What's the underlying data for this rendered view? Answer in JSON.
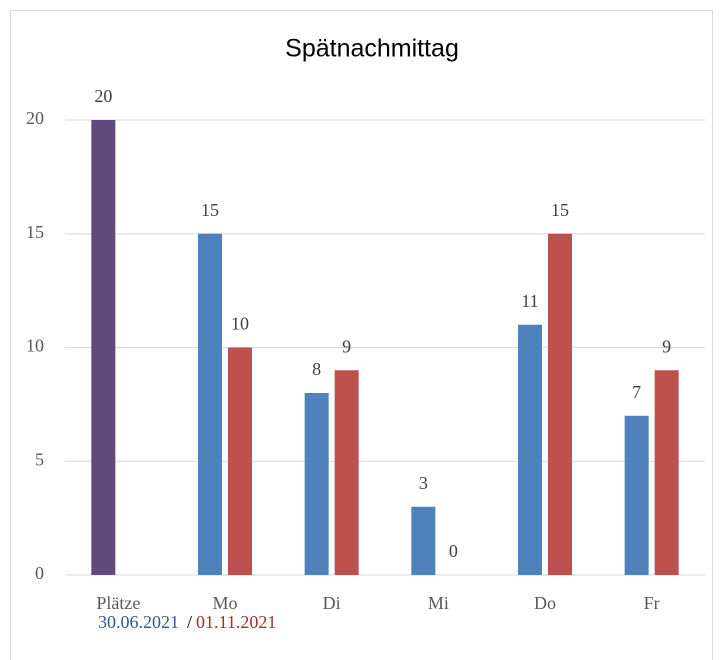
{
  "chart_data": {
    "type": "bar",
    "title": "Spätnachmittag",
    "categories": [
      "Plätze",
      "Mo",
      "Di",
      "Mi",
      "Do",
      "Fr"
    ],
    "series": [
      {
        "name": "30.06.2021",
        "color": "#4f81bd",
        "point_colors": [
          "#604a7b",
          "#4f81bd",
          "#4f81bd",
          "#4f81bd",
          "#4f81bd",
          "#4f81bd"
        ],
        "values": [
          20,
          15,
          8,
          3,
          11,
          7
        ]
      },
      {
        "name": "01.11.2021",
        "color": "#c0504d",
        "values": [
          null,
          10,
          9,
          0,
          15,
          9
        ]
      }
    ],
    "legend_separator": "/",
    "ylim": [
      0,
      20
    ],
    "yticks": [
      0,
      5,
      10,
      15,
      20
    ],
    "grid": true
  }
}
